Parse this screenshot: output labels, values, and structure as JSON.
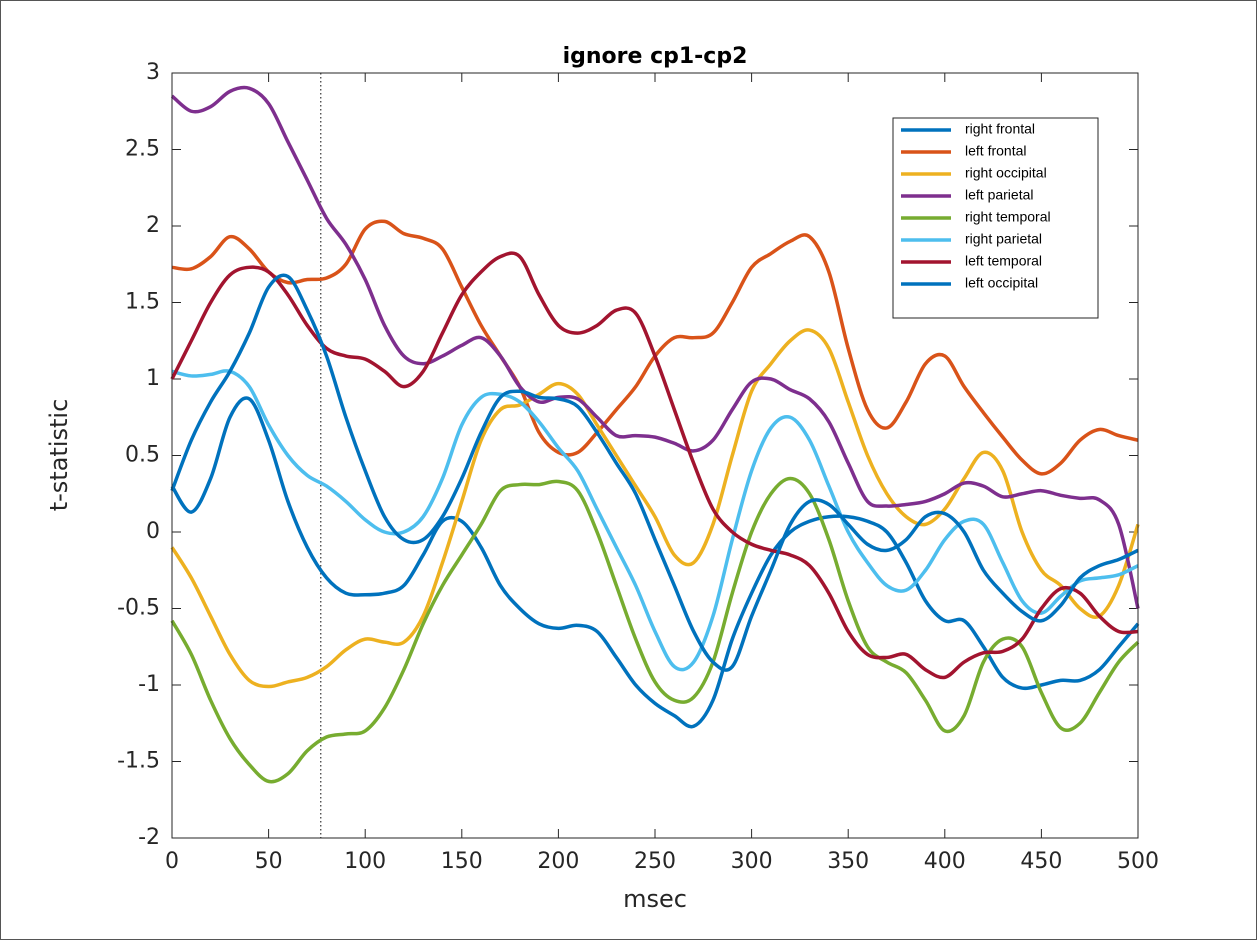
{
  "chart_data": {
    "type": "line",
    "title": "ignore cp1-cp2",
    "x_label": "msec",
    "y_label": "t-statistic",
    "x": [
      0,
      10,
      20,
      30,
      40,
      50,
      60,
      70,
      80,
      90,
      100,
      110,
      120,
      130,
      140,
      150,
      160,
      170,
      180,
      190,
      200,
      210,
      220,
      230,
      240,
      250,
      260,
      270,
      280,
      290,
      300,
      310,
      320,
      330,
      340,
      350,
      360,
      370,
      380,
      390,
      400,
      410,
      420,
      430,
      440,
      450,
      460,
      470,
      480,
      490,
      500
    ],
    "series": [
      {
        "name": "right frontal",
        "color": "#0072BD",
        "values": [
          0.3,
          0.13,
          0.35,
          0.75,
          0.87,
          0.6,
          0.2,
          -0.1,
          -0.3,
          -0.4,
          -0.41,
          -0.4,
          -0.35,
          -0.15,
          0.07,
          0.07,
          -0.1,
          -0.35,
          -0.5,
          -0.6,
          -0.63,
          -0.61,
          -0.65,
          -0.82,
          -1.0,
          -1.12,
          -1.2,
          -1.27,
          -1.1,
          -0.7,
          -0.4,
          -0.15,
          0.0,
          0.07,
          0.1,
          0.1,
          0.07,
          0.0,
          -0.2,
          -0.45,
          -0.58,
          -0.58,
          -0.75,
          -0.95,
          -1.02,
          -1.0,
          -0.97,
          -0.97,
          -0.9,
          -0.75,
          -0.6
        ]
      },
      {
        "name": "left frontal",
        "color": "#D95319",
        "values": [
          1.73,
          1.72,
          1.8,
          1.93,
          1.85,
          1.7,
          1.63,
          1.65,
          1.66,
          1.75,
          1.98,
          2.03,
          1.95,
          1.92,
          1.85,
          1.6,
          1.35,
          1.15,
          0.95,
          0.65,
          0.52,
          0.52,
          0.65,
          0.8,
          0.95,
          1.15,
          1.27,
          1.27,
          1.3,
          1.5,
          1.73,
          1.82,
          1.9,
          1.93,
          1.7,
          1.2,
          0.8,
          0.68,
          0.85,
          1.1,
          1.15,
          0.95,
          0.78,
          0.62,
          0.47,
          0.38,
          0.45,
          0.6,
          0.67,
          0.63,
          0.6
        ]
      },
      {
        "name": "right occipital",
        "color": "#EDB120",
        "values": [
          -0.1,
          -0.3,
          -0.55,
          -0.8,
          -0.97,
          -1.01,
          -0.98,
          -0.95,
          -0.88,
          -0.77,
          -0.7,
          -0.72,
          -0.72,
          -0.55,
          -0.2,
          0.2,
          0.6,
          0.8,
          0.83,
          0.9,
          0.97,
          0.9,
          0.7,
          0.5,
          0.3,
          0.1,
          -0.15,
          -0.2,
          0.05,
          0.5,
          0.92,
          1.1,
          1.25,
          1.32,
          1.2,
          0.85,
          0.5,
          0.25,
          0.1,
          0.05,
          0.15,
          0.35,
          0.52,
          0.4,
          0.0,
          -0.25,
          -0.35,
          -0.5,
          -0.55,
          -0.35,
          0.05
        ]
      },
      {
        "name": "left parietal",
        "color": "#7E2F8E",
        "values": [
          2.85,
          2.75,
          2.78,
          2.88,
          2.9,
          2.8,
          2.55,
          2.3,
          2.05,
          1.88,
          1.65,
          1.35,
          1.15,
          1.1,
          1.15,
          1.22,
          1.27,
          1.15,
          0.95,
          0.85,
          0.88,
          0.87,
          0.75,
          0.63,
          0.63,
          0.62,
          0.58,
          0.53,
          0.6,
          0.8,
          0.98,
          1.0,
          0.93,
          0.87,
          0.72,
          0.45,
          0.2,
          0.17,
          0.18,
          0.2,
          0.25,
          0.32,
          0.3,
          0.23,
          0.25,
          0.27,
          0.24,
          0.22,
          0.21,
          0.05,
          -0.5
        ]
      },
      {
        "name": "right temporal",
        "color": "#77AC30",
        "values": [
          -0.58,
          -0.8,
          -1.1,
          -1.35,
          -1.52,
          -1.63,
          -1.58,
          -1.43,
          -1.34,
          -1.32,
          -1.3,
          -1.15,
          -0.9,
          -0.6,
          -0.35,
          -0.15,
          0.05,
          0.27,
          0.31,
          0.31,
          0.33,
          0.27,
          0.0,
          -0.35,
          -0.7,
          -0.98,
          -1.1,
          -1.08,
          -0.85,
          -0.4,
          0.0,
          0.25,
          0.35,
          0.25,
          -0.05,
          -0.45,
          -0.75,
          -0.85,
          -0.92,
          -1.1,
          -1.3,
          -1.2,
          -0.85,
          -0.7,
          -0.75,
          -1.05,
          -1.28,
          -1.25,
          -1.05,
          -0.85,
          -0.72
        ]
      },
      {
        "name": "right parietal",
        "color": "#4DBEEE",
        "values": [
          1.05,
          1.02,
          1.03,
          1.05,
          0.95,
          0.7,
          0.5,
          0.37,
          0.3,
          0.2,
          0.08,
          0.0,
          0.0,
          0.1,
          0.35,
          0.7,
          0.88,
          0.9,
          0.85,
          0.72,
          0.55,
          0.4,
          0.15,
          -0.1,
          -0.35,
          -0.65,
          -0.88,
          -0.85,
          -0.55,
          -0.05,
          0.4,
          0.68,
          0.75,
          0.6,
          0.3,
          0.0,
          -0.2,
          -0.35,
          -0.38,
          -0.25,
          -0.05,
          0.07,
          0.05,
          -0.2,
          -0.45,
          -0.53,
          -0.42,
          -0.32,
          -0.3,
          -0.28,
          -0.22
        ]
      },
      {
        "name": "left temporal",
        "color": "#A2142F",
        "values": [
          1.0,
          1.25,
          1.5,
          1.68,
          1.73,
          1.7,
          1.55,
          1.35,
          1.2,
          1.15,
          1.13,
          1.05,
          0.95,
          1.05,
          1.3,
          1.55,
          1.7,
          1.8,
          1.8,
          1.55,
          1.35,
          1.3,
          1.35,
          1.45,
          1.43,
          1.15,
          0.8,
          0.45,
          0.15,
          0.0,
          -0.08,
          -0.12,
          -0.15,
          -0.22,
          -0.4,
          -0.65,
          -0.8,
          -0.82,
          -0.8,
          -0.9,
          -0.95,
          -0.85,
          -0.79,
          -0.78,
          -0.7,
          -0.5,
          -0.37,
          -0.4,
          -0.55,
          -0.65,
          -0.65
        ]
      },
      {
        "name": "left occipital",
        "color": "#0072BD",
        "values": [
          0.27,
          0.6,
          0.85,
          1.05,
          1.3,
          1.6,
          1.67,
          1.45,
          1.15,
          0.75,
          0.4,
          0.1,
          -0.05,
          -0.05,
          0.1,
          0.35,
          0.65,
          0.88,
          0.92,
          0.88,
          0.87,
          0.82,
          0.65,
          0.45,
          0.25,
          -0.05,
          -0.35,
          -0.65,
          -0.85,
          -0.88,
          -0.55,
          -0.25,
          0.05,
          0.2,
          0.18,
          0.05,
          -0.08,
          -0.12,
          -0.05,
          0.1,
          0.12,
          0.0,
          -0.25,
          -0.4,
          -0.52,
          -0.58,
          -0.48,
          -0.3,
          -0.22,
          -0.18,
          -0.12
        ]
      }
    ],
    "xlim": [
      0,
      500
    ],
    "ylim": [
      -2,
      3
    ],
    "xticks": [
      0,
      50,
      100,
      150,
      200,
      250,
      300,
      350,
      400,
      450,
      500
    ],
    "yticks": [
      -2,
      -1.5,
      -1,
      -0.5,
      0,
      0.5,
      1,
      1.5,
      2,
      2.5,
      3
    ],
    "vertical_line": 77,
    "legend": "northeast"
  }
}
